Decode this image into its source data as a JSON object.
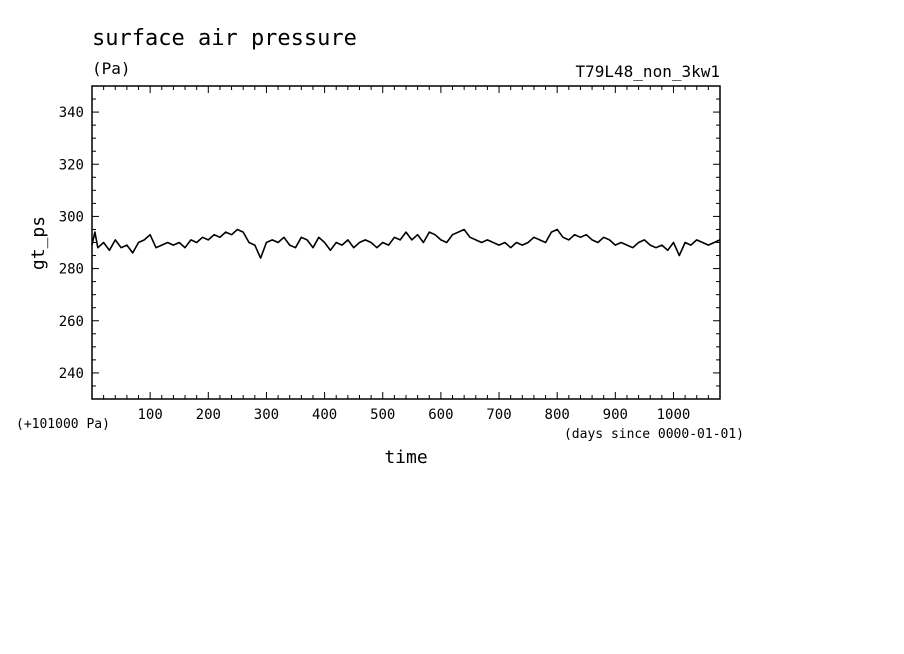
{
  "chart_data": {
    "type": "line",
    "title": "surface air pressure",
    "units": "(Pa)",
    "run_label": "T79L48_non_3kw1",
    "xlabel": "time",
    "x_units_note": "(days since 0000-01-01)",
    "ylabel": "gt_ps",
    "y_offset_note": "(+101000 Pa)",
    "xlim": [
      0,
      1080
    ],
    "ylim": [
      230,
      350
    ],
    "x_ticks": [
      100,
      200,
      300,
      400,
      500,
      600,
      700,
      800,
      900,
      1000
    ],
    "x_tick_labels": [
      "100",
      "200",
      "300",
      "400",
      "500",
      "600",
      "700",
      "800",
      "900",
      "1000"
    ],
    "y_ticks": [
      240,
      260,
      280,
      300,
      320,
      340
    ],
    "y_tick_labels": [
      "240",
      "260",
      "280",
      "300",
      "320",
      "340"
    ],
    "grid": false,
    "series": [
      {
        "color": "#000000",
        "points": [
          [
            0,
            289
          ],
          [
            5,
            294
          ],
          [
            10,
            288
          ],
          [
            20,
            290
          ],
          [
            30,
            287
          ],
          [
            40,
            291
          ],
          [
            50,
            288
          ],
          [
            60,
            289
          ],
          [
            70,
            286
          ],
          [
            80,
            290
          ],
          [
            90,
            291
          ],
          [
            100,
            293
          ],
          [
            110,
            288
          ],
          [
            120,
            289
          ],
          [
            130,
            290
          ],
          [
            140,
            289
          ],
          [
            150,
            290
          ],
          [
            160,
            288
          ],
          [
            170,
            291
          ],
          [
            180,
            290
          ],
          [
            190,
            292
          ],
          [
            200,
            291
          ],
          [
            210,
            293
          ],
          [
            220,
            292
          ],
          [
            230,
            294
          ],
          [
            240,
            293
          ],
          [
            250,
            295
          ],
          [
            260,
            294
          ],
          [
            270,
            290
          ],
          [
            280,
            289
          ],
          [
            290,
            284
          ],
          [
            300,
            290
          ],
          [
            310,
            291
          ],
          [
            320,
            290
          ],
          [
            330,
            292
          ],
          [
            340,
            289
          ],
          [
            350,
            288
          ],
          [
            360,
            292
          ],
          [
            370,
            291
          ],
          [
            380,
            288
          ],
          [
            390,
            292
          ],
          [
            400,
            290
          ],
          [
            410,
            287
          ],
          [
            420,
            290
          ],
          [
            430,
            289
          ],
          [
            440,
            291
          ],
          [
            450,
            288
          ],
          [
            460,
            290
          ],
          [
            470,
            291
          ],
          [
            480,
            290
          ],
          [
            490,
            288
          ],
          [
            500,
            290
          ],
          [
            510,
            289
          ],
          [
            520,
            292
          ],
          [
            530,
            291
          ],
          [
            540,
            294
          ],
          [
            550,
            291
          ],
          [
            560,
            293
          ],
          [
            570,
            290
          ],
          [
            580,
            294
          ],
          [
            590,
            293
          ],
          [
            600,
            291
          ],
          [
            610,
            290
          ],
          [
            620,
            293
          ],
          [
            630,
            294
          ],
          [
            640,
            295
          ],
          [
            650,
            292
          ],
          [
            660,
            291
          ],
          [
            670,
            290
          ],
          [
            680,
            291
          ],
          [
            690,
            290
          ],
          [
            700,
            289
          ],
          [
            710,
            290
          ],
          [
            720,
            288
          ],
          [
            730,
            290
          ],
          [
            740,
            289
          ],
          [
            750,
            290
          ],
          [
            760,
            292
          ],
          [
            770,
            291
          ],
          [
            780,
            290
          ],
          [
            790,
            294
          ],
          [
            800,
            295
          ],
          [
            810,
            292
          ],
          [
            820,
            291
          ],
          [
            830,
            293
          ],
          [
            840,
            292
          ],
          [
            850,
            293
          ],
          [
            860,
            291
          ],
          [
            870,
            290
          ],
          [
            880,
            292
          ],
          [
            890,
            291
          ],
          [
            900,
            289
          ],
          [
            910,
            290
          ],
          [
            920,
            289
          ],
          [
            930,
            288
          ],
          [
            940,
            290
          ],
          [
            950,
            291
          ],
          [
            960,
            289
          ],
          [
            970,
            288
          ],
          [
            980,
            289
          ],
          [
            990,
            287
          ],
          [
            1000,
            290
          ],
          [
            1010,
            285
          ],
          [
            1020,
            290
          ],
          [
            1030,
            289
          ],
          [
            1040,
            291
          ],
          [
            1050,
            290
          ],
          [
            1060,
            289
          ],
          [
            1070,
            290
          ],
          [
            1080,
            291
          ]
        ]
      }
    ]
  }
}
